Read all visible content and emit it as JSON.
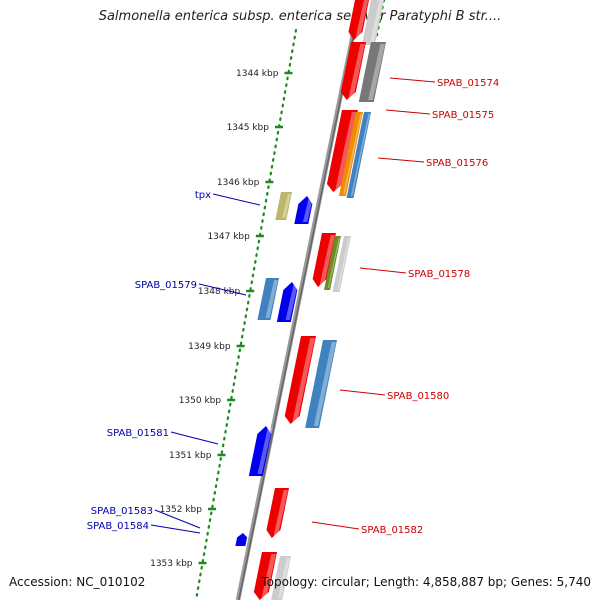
{
  "title": "Salmonella enterica subsp. enterica serovar Paratyphi B str....",
  "accession": "Accession: NC_010102",
  "summary": "Topology: circular; Length: 4,858,887 bp; Genes: 5,740",
  "colors": {
    "backbone": "#888888",
    "ruler": "#1e8a1e",
    "reverse_label": "#cc0000",
    "forward_label": "#0000aa",
    "gene_red": "#ee0000",
    "gene_blue": "#0000ee",
    "gene_gray": "#777777",
    "gene_steel": "#3f82bf",
    "gene_orange": "#f08c00",
    "gene_olive": "#6b8e23",
    "gene_khaki": "#bdb76b",
    "gene_light": "#cccccc"
  },
  "ruler_ticks": [
    "1344 kbp",
    "1345 kbp",
    "1346 kbp",
    "1347 kbp",
    "1348 kbp",
    "1349 kbp",
    "1350 kbp",
    "1351 kbp",
    "1352 kbp",
    "1353 kbp"
  ],
  "gene_labels": {
    "reverse": [
      "SPAB_01574",
      "SPAB_01575",
      "SPAB_01576",
      "SPAB_01578",
      "SPAB_01580",
      "SPAB_01582"
    ],
    "forward": [
      "tpx",
      "SPAB_01579",
      "SPAB_01581",
      "SPAB_01583",
      "SPAB_01584"
    ]
  }
}
